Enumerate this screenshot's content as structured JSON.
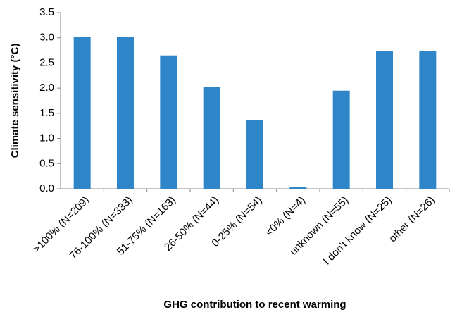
{
  "chart_data": {
    "type": "bar",
    "categories": [
      ">100% (N=209)",
      "76-100% (N=333)",
      "51-75% (N=163)",
      "26-50% (N=44)",
      "0-25% (N=54)",
      "<0% (N=4)",
      "unknown (N=55)",
      "I don't know (N=25)",
      "other (N=26)"
    ],
    "values": [
      3.01,
      3.01,
      2.65,
      2.02,
      1.37,
      0.03,
      1.95,
      2.73,
      2.73
    ],
    "color": "#2e86c8",
    "ylim": [
      0,
      3.5
    ],
    "yticks": [
      {
        "value": 0,
        "label": "0.0"
      },
      0.5,
      {
        "value": 1,
        "label": "1.0"
      },
      1.5,
      {
        "value": 2,
        "label": "2.0"
      },
      2.5,
      {
        "value": 3,
        "label": "3.0"
      },
      3.5
    ],
    "ylabel": "Climate sensitivity (°C)",
    "xlabel": "GHG contribution to recent warming",
    "grid": false
  }
}
